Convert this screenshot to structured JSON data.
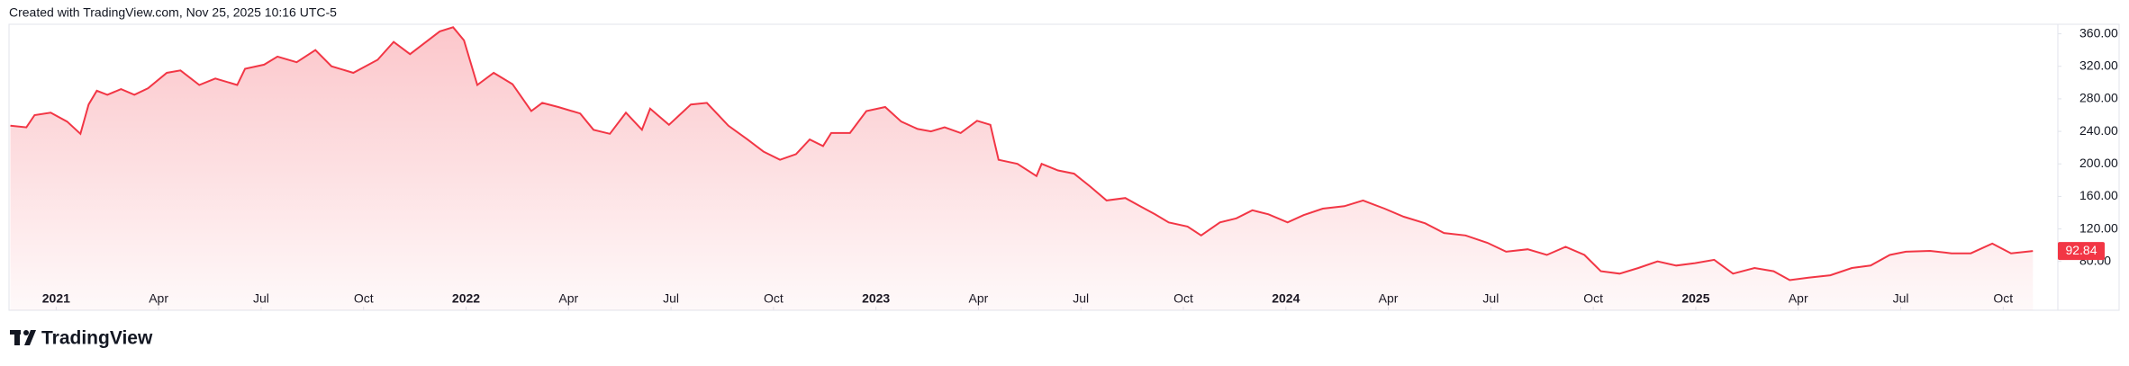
{
  "header": {
    "text": "Created with TradingView.com, Nov 25, 2025 10:16 UTC-5"
  },
  "chart_data": {
    "type": "area",
    "color": "#f23645",
    "grid": false,
    "xlim": [
      -1.38,
      58.6
    ],
    "xticks": [
      {
        "value": 0,
        "label": "2021"
      },
      {
        "value": 3,
        "label": "Apr"
      },
      {
        "value": 6,
        "label": "Jul"
      },
      {
        "value": 9,
        "label": "Oct"
      },
      {
        "value": 12,
        "label": "2022"
      },
      {
        "value": 15,
        "label": "Apr"
      },
      {
        "value": 18,
        "label": "Jul"
      },
      {
        "value": 21,
        "label": "Oct"
      },
      {
        "value": 24,
        "label": "2023"
      },
      {
        "value": 27,
        "label": "Apr"
      },
      {
        "value": 30,
        "label": "Jul"
      },
      {
        "value": 33,
        "label": "Oct"
      },
      {
        "value": 36,
        "label": "2024"
      },
      {
        "value": 39,
        "label": "Apr"
      },
      {
        "value": 42,
        "label": "Jul"
      },
      {
        "value": 45,
        "label": "Oct"
      },
      {
        "value": 48,
        "label": "2025"
      },
      {
        "value": 51,
        "label": "Apr"
      },
      {
        "value": 54,
        "label": "Jul"
      },
      {
        "value": 57,
        "label": "Oct"
      }
    ],
    "ylim": [
      20,
      371.7
    ],
    "yticks": [
      {
        "value": 80,
        "label": "80.00"
      },
      {
        "value": 120,
        "label": "120.00"
      },
      {
        "value": 160,
        "label": "160.00"
      },
      {
        "value": 200,
        "label": "200.00"
      },
      {
        "value": 240,
        "label": "240.00"
      },
      {
        "value": 280,
        "label": "280.00"
      },
      {
        "value": 320,
        "label": "320.00"
      },
      {
        "value": 360,
        "label": "360.00"
      }
    ],
    "series": [
      {
        "x": [
          -1.34,
          -0.87,
          -0.63,
          -0.16,
          0.32,
          0.71,
          0.95,
          1.19,
          1.5,
          1.9,
          2.29,
          2.69,
          3.24,
          3.64,
          4.19,
          4.66,
          5.3,
          5.53,
          6.09,
          6.48,
          7.04,
          7.59,
          8.06,
          8.7,
          9.41,
          9.88,
          10.36,
          10.83,
          11.23,
          11.62,
          11.94,
          12.33,
          12.81,
          13.36,
          13.91,
          14.23,
          14.7,
          15.34,
          15.73,
          16.21,
          16.68,
          17.15,
          17.39,
          17.94,
          18.58,
          19.05,
          19.68,
          20.24,
          20.71,
          21.19,
          21.66,
          22.06,
          22.45,
          22.69,
          23.24,
          23.72,
          24.27,
          24.74,
          25.22,
          25.61,
          26.01,
          26.48,
          26.96,
          27.35,
          27.59,
          28.14,
          28.7,
          28.85,
          29.33,
          29.8,
          30.28,
          30.75,
          31.3,
          31.78,
          32.17,
          32.57,
          33.12,
          33.52,
          34.07,
          34.55,
          35.02,
          35.49,
          36.05,
          36.52,
          37.08,
          37.71,
          38.26,
          38.89,
          39.45,
          40.08,
          40.63,
          41.26,
          41.9,
          42.45,
          43.08,
          43.64,
          44.19,
          44.74,
          45.22,
          45.77,
          46.32,
          46.88,
          47.43,
          47.98,
          48.54,
          49.09,
          49.72,
          50.28,
          50.75,
          51.3,
          51.94,
          52.57,
          53.12,
          53.68,
          54.15,
          54.86,
          55.49,
          56.05,
          56.68,
          57.23,
          57.87
        ],
        "values": [
          247,
          245,
          260,
          263,
          252,
          237,
          273,
          290,
          285,
          292,
          285,
          293,
          312,
          315,
          297,
          305,
          297,
          317,
          322,
          332,
          325,
          340,
          320,
          312,
          328,
          350,
          335,
          350,
          363,
          368,
          352,
          297,
          312,
          298,
          265,
          275,
          270,
          262,
          242,
          237,
          263,
          242,
          268,
          248,
          273,
          275,
          247,
          230,
          215,
          205,
          212,
          230,
          222,
          238,
          238,
          265,
          270,
          252,
          243,
          240,
          245,
          238,
          253,
          248,
          205,
          200,
          185,
          200,
          192,
          188,
          172,
          155,
          158,
          147,
          138,
          128,
          123,
          112,
          128,
          133,
          143,
          138,
          128,
          137,
          145,
          148,
          155,
          145,
          135,
          127,
          115,
          112,
          103,
          92,
          95,
          88,
          98,
          88,
          68,
          65,
          72,
          80,
          75,
          78,
          82,
          65,
          72,
          68,
          57,
          60,
          63,
          72,
          75,
          88,
          92,
          93,
          90,
          90,
          102,
          90,
          92.84
        ]
      }
    ]
  },
  "footer": {
    "brand": "TradingView"
  }
}
